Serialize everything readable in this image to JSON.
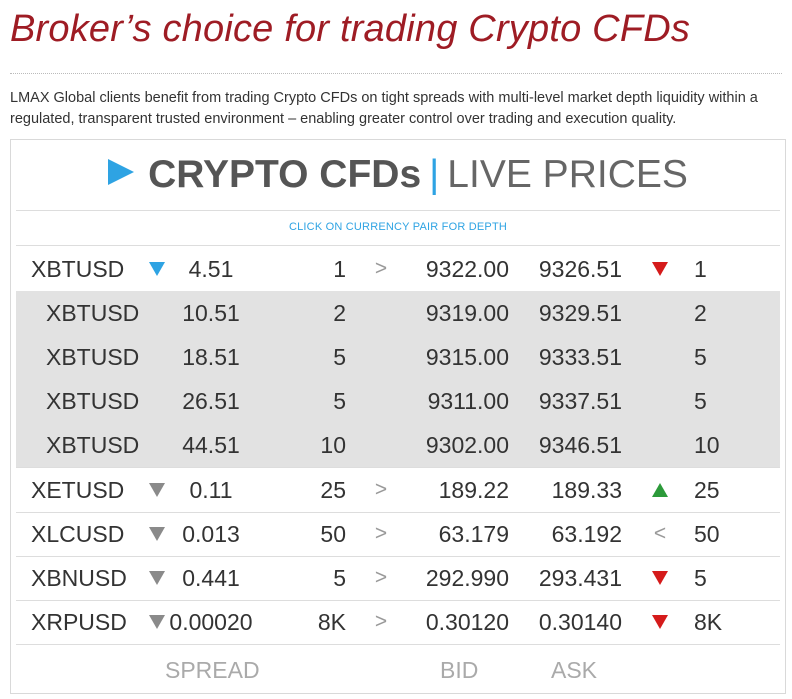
{
  "headline": "Broker’s choice for trading Crypto CFDs",
  "intro": "LMAX Global clients benefit from trading Crypto CFDs on tight spreads with multi-level market depth liquidity within a regulated, transparent trusted environment – enabling greater control over trading and execution quality.",
  "panel": {
    "title_bold": "CRYPTO CFDs",
    "separator": "|",
    "title_light": "LIVE PRICES",
    "hint": "CLICK ON CURRENCY PAIR FOR DEPTH",
    "colors": {
      "accent": "#2ea3e3",
      "down": "#d51b1b",
      "up": "#2c9a3a",
      "brand": "#9e1c24"
    },
    "rows": [
      {
        "pair": "XBTUSD",
        "pair_icon": "triangle-down-blue",
        "spread": "4.51",
        "bid_size": "1",
        "mid": ">",
        "bid": "9322.00",
        "ask": "9326.51",
        "dir_icon": "triangle-down-red",
        "ask_size": "1"
      },
      {
        "pair": "XBTUSD",
        "pair_icon": "",
        "spread": "10.51",
        "bid_size": "2",
        "mid": "",
        "bid": "9319.00",
        "ask": "9329.51",
        "dir_icon": "",
        "ask_size": "2"
      },
      {
        "pair": "XBTUSD",
        "pair_icon": "",
        "spread": "18.51",
        "bid_size": "5",
        "mid": "",
        "bid": "9315.00",
        "ask": "9333.51",
        "dir_icon": "",
        "ask_size": "5"
      },
      {
        "pair": "XBTUSD",
        "pair_icon": "",
        "spread": "26.51",
        "bid_size": "5",
        "mid": "",
        "bid": "9311.00",
        "ask": "9337.51",
        "dir_icon": "",
        "ask_size": "5"
      },
      {
        "pair": "XBTUSD",
        "pair_icon": "",
        "spread": "44.51",
        "bid_size": "10",
        "mid": "",
        "bid": "9302.00",
        "ask": "9346.51",
        "dir_icon": "",
        "ask_size": "10"
      },
      {
        "pair": "XETUSD",
        "pair_icon": "triangle-down-grey",
        "spread": "0.11",
        "bid_size": "25",
        "mid": ">",
        "bid": "189.22",
        "ask": "189.33",
        "dir_icon": "triangle-up-green",
        "ask_size": "25"
      },
      {
        "pair": "XLCUSD",
        "pair_icon": "triangle-down-grey",
        "spread": "0.013",
        "bid_size": "50",
        "mid": ">",
        "bid": "63.179",
        "ask": "63.192",
        "dir_icon": "less-than",
        "ask_size": "50"
      },
      {
        "pair": "XBNUSD",
        "pair_icon": "triangle-down-grey",
        "spread": "0.441",
        "bid_size": "5",
        "mid": ">",
        "bid": "292.990",
        "ask": "293.431",
        "dir_icon": "triangle-down-red",
        "ask_size": "5"
      },
      {
        "pair": "XRPUSD",
        "pair_icon": "triangle-down-grey",
        "spread": "0.00020",
        "bid_size": "8K",
        "mid": ">",
        "bid": "0.30120",
        "ask": "0.30140",
        "dir_icon": "triangle-down-red",
        "ask_size": "8K"
      }
    ],
    "footer": {
      "spread": "SPREAD",
      "bid": "BID",
      "ask": "ASK"
    }
  }
}
